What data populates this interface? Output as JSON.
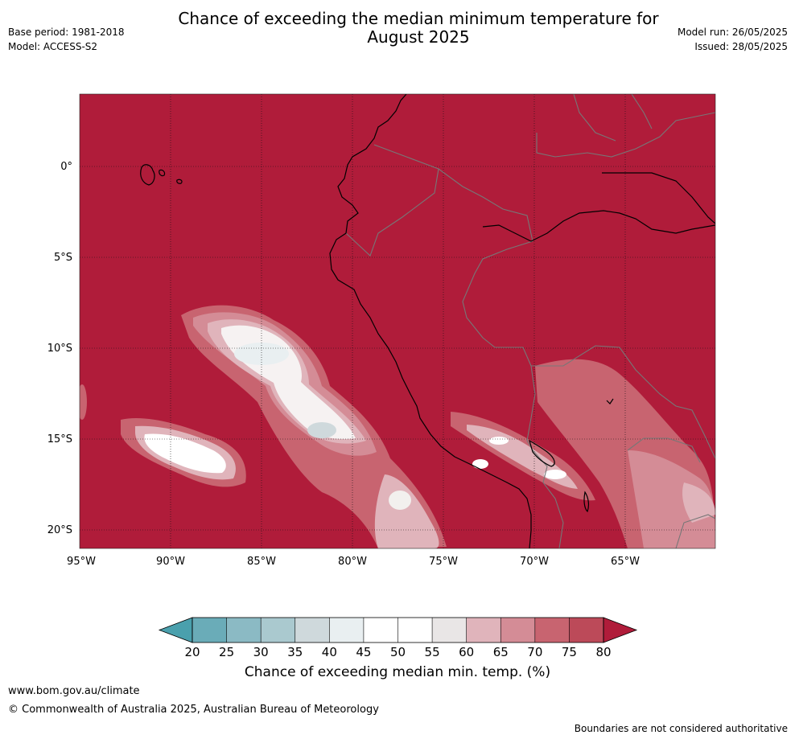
{
  "header": {
    "title_line1": "Chance of exceeding the median minimum temperature for",
    "title_line2": "August 2025",
    "base_period": "Base period: 1981-2018",
    "model": "Model: ACCESS-S2",
    "model_run": "Model run: 26/05/2025",
    "issued": "Issued: 28/05/2025"
  },
  "map": {
    "lat_labels": [
      "0°",
      "5°S",
      "10°S",
      "15°S",
      "20°S"
    ],
    "lon_labels": [
      "95°W",
      "90°W",
      "85°W",
      "80°W",
      "75°W",
      "70°W",
      "65°W"
    ],
    "colors": {
      "background_field": "#b01c3a",
      "land_border": "#777777",
      "coastline": "#000000"
    }
  },
  "colorbar": {
    "title": "Chance of exceeding median min. temp. (%)",
    "ticks": [
      "20",
      "25",
      "30",
      "35",
      "40",
      "45",
      "50",
      "55",
      "60",
      "65",
      "70",
      "75",
      "80"
    ],
    "colors": [
      "#4aa0ad",
      "#6aacb8",
      "#8bbac4",
      "#aac9cf",
      "#cfd9dc",
      "#e9eff1",
      "#ffffff",
      "#ffffff",
      "#e9e6e6",
      "#e0b4bb",
      "#d48c96",
      "#c86470",
      "#bc4a59",
      "#b01c3a"
    ]
  },
  "footer": {
    "url": "www.bom.gov.au/climate",
    "copyright": "© Commonwealth of Australia 2025, Australian Bureau of Meteorology",
    "disclaimer": "Boundaries are not considered authoritative"
  }
}
